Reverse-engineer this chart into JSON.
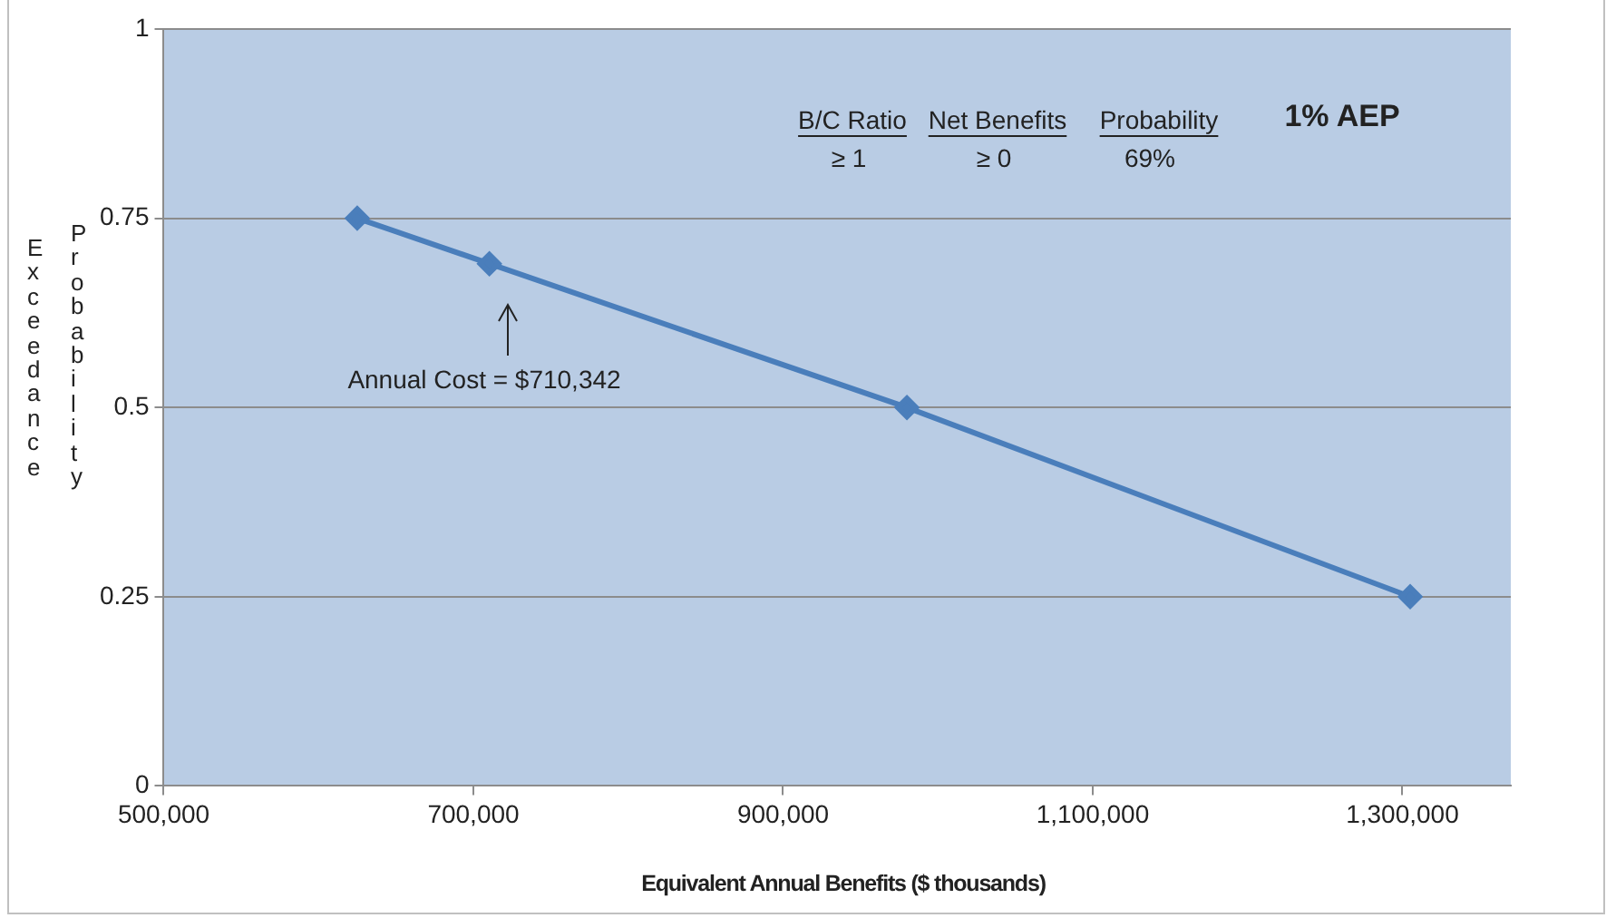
{
  "chart_data": {
    "type": "line",
    "xlabel": "Equivalent Annual Benefits ($ thousands)",
    "ylabel": "Exceedance Probability",
    "x": [
      625000,
      710342,
      980000,
      1305000
    ],
    "series": [
      {
        "color": "#4a7ebb",
        "values": [
          0.75,
          0.69,
          0.5,
          0.25
        ]
      }
    ],
    "xlim": [
      500000,
      1370000
    ],
    "xticks": [
      {
        "value": 500000,
        "label": "500,000"
      },
      {
        "value": 700000,
        "label": "700,000"
      },
      {
        "value": 900000,
        "label": "900,000"
      },
      {
        "value": 1100000,
        "label": "1,100,000"
      },
      {
        "value": 1300000,
        "label": "1,300,000"
      }
    ],
    "ylim": [
      0,
      1
    ],
    "yticks": [
      0,
      0.25,
      0.5,
      0.75,
      1
    ],
    "grid": "y",
    "marker": "diamond",
    "line_style": "solid",
    "legend": false,
    "annotations": [
      "B/C Ratio",
      "≥ 1",
      "Net Benefits",
      "≥ 0",
      "Probability",
      "69%",
      "1% AEP",
      "Annual Cost = $710,342"
    ]
  }
}
